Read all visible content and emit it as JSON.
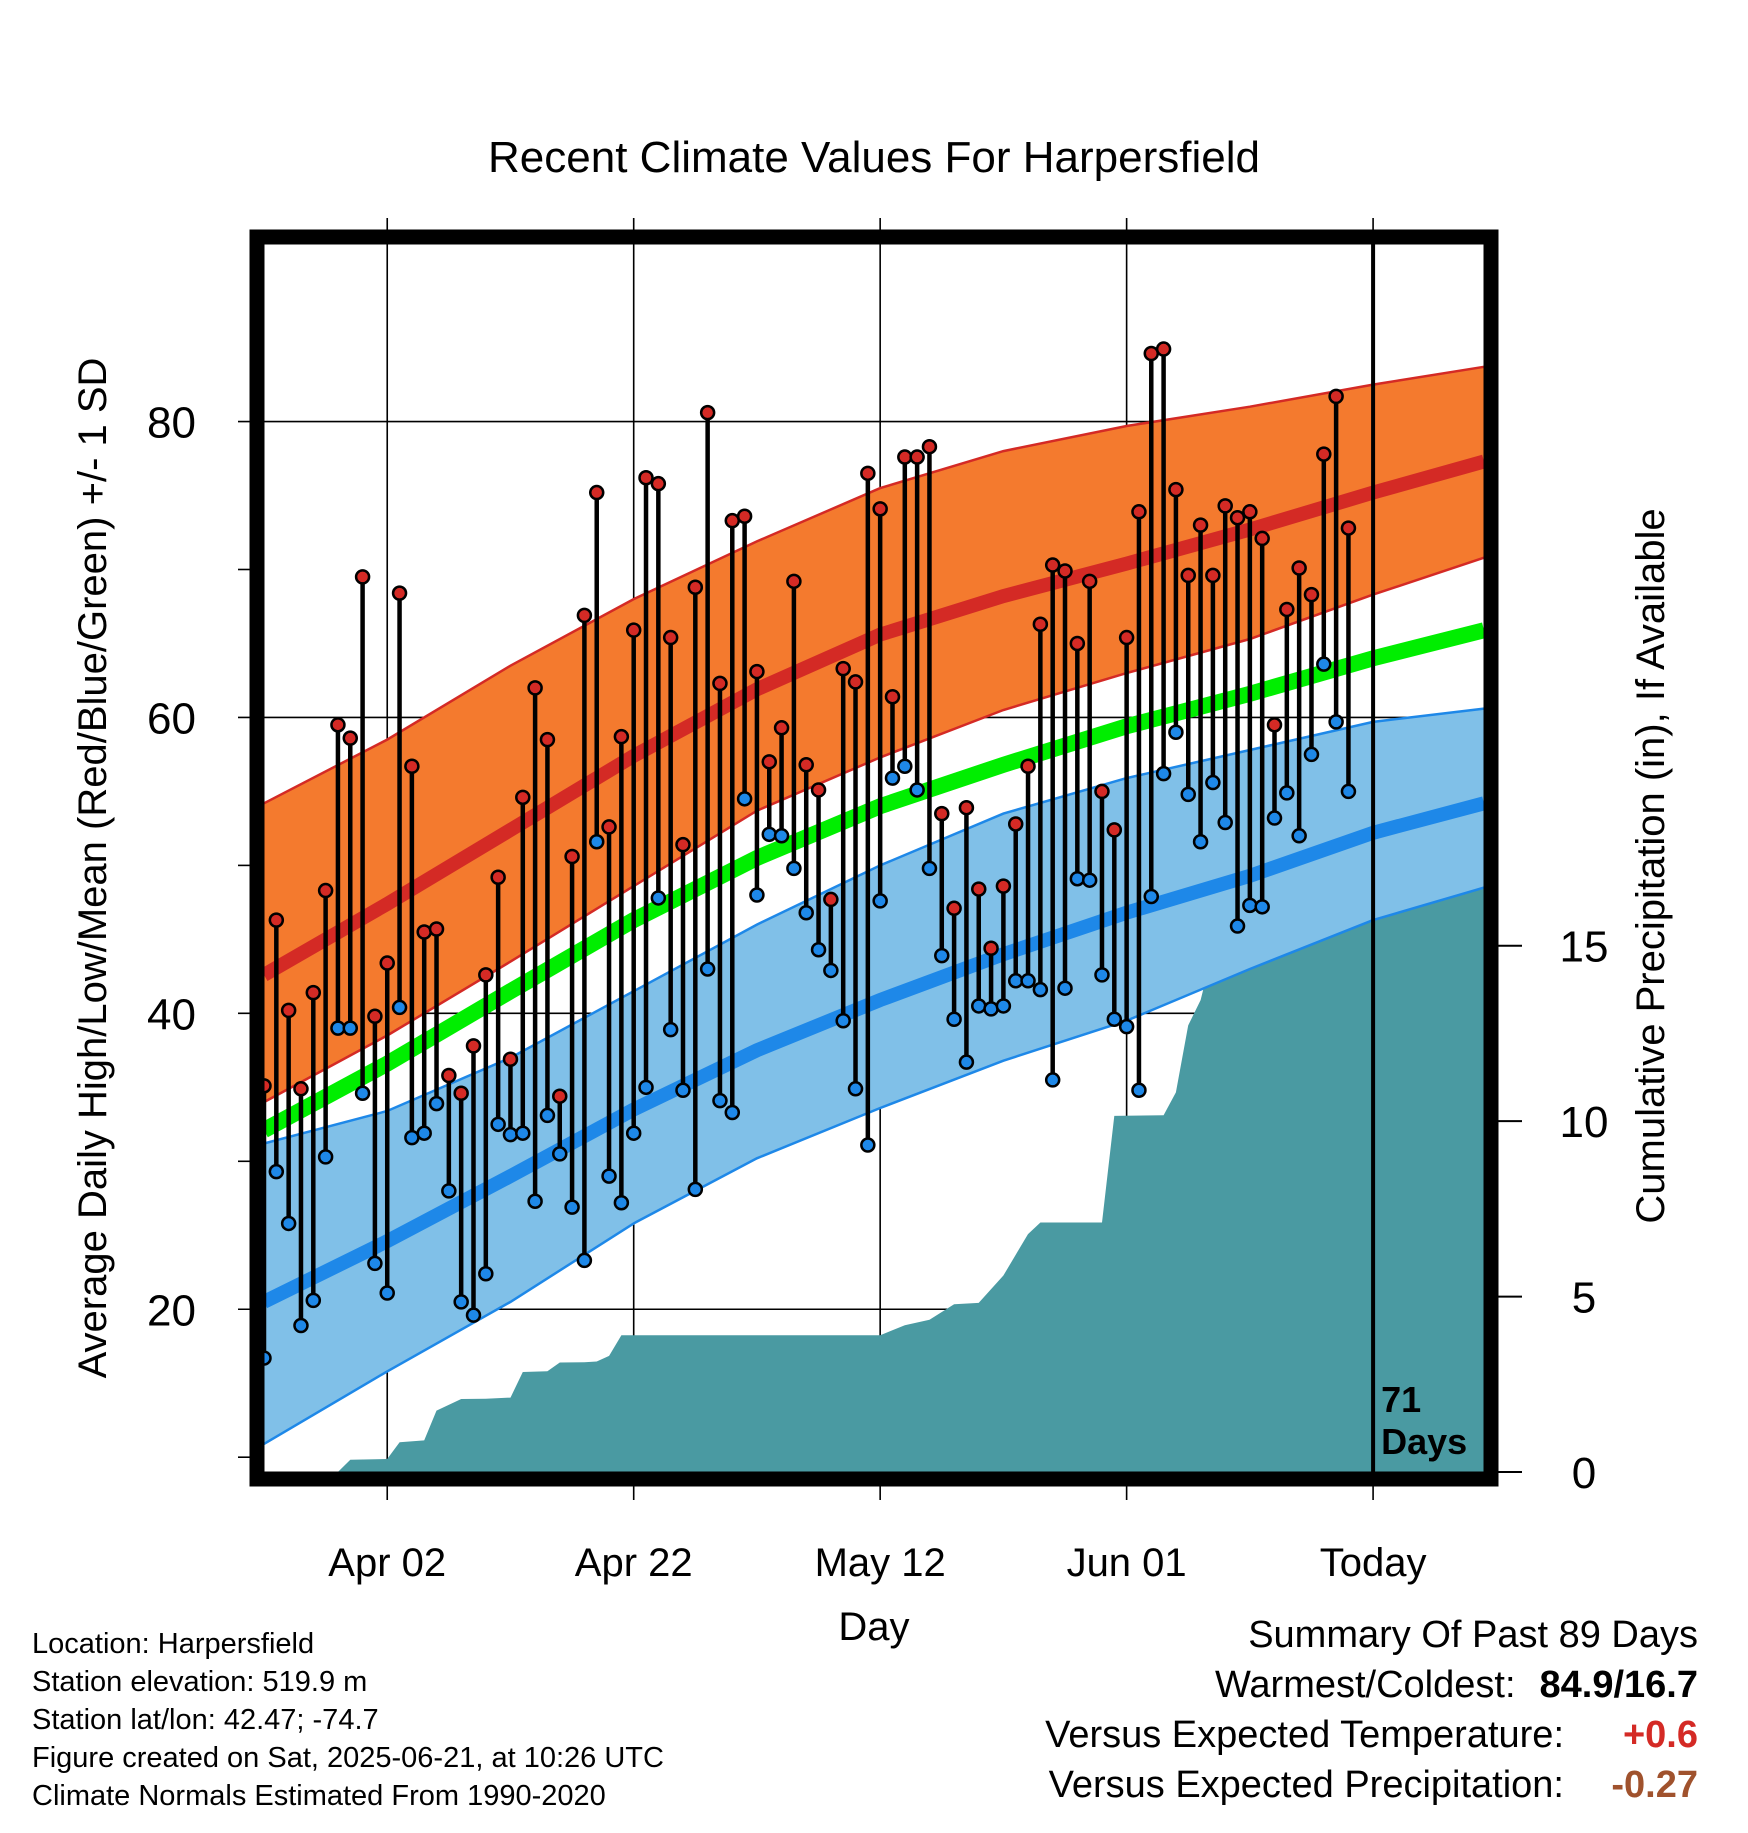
{
  "chart_data": {
    "type": "line",
    "title": "Recent Climate Values For Harpersfield",
    "xlabel": "Day",
    "ylabel_left": "Average Daily High/Low/Mean (Red/Blue/Green) +/- 1 SD",
    "ylabel_right": "Cumulative Precipitation (in), If Available",
    "x_range": [
      "2025-03-23",
      "2025-06-30"
    ],
    "x_ticks": [
      {
        "date": "2025-04-02",
        "label": "Apr 02"
      },
      {
        "date": "2025-04-22",
        "label": "Apr 22"
      },
      {
        "date": "2025-05-12",
        "label": "May 12"
      },
      {
        "date": "2025-06-01",
        "label": "Jun 01"
      },
      {
        "date": "2025-06-21",
        "label": "Today"
      }
    ],
    "y_left_range": [
      9,
      92
    ],
    "y_left_ticks": [
      20,
      40,
      60,
      80
    ],
    "y_right_range": [
      0,
      35
    ],
    "y_right_ticks": [
      0,
      5,
      10,
      15
    ],
    "grid": true,
    "today_date": "2025-06-21",
    "today_annotation": [
      "71",
      "Days"
    ],
    "colors": {
      "high_band": "#f47a2e",
      "high_mean": "#d42a25",
      "low_band": "#80c0e8",
      "low_mean": "#1e88e8",
      "mean": "#00ee00",
      "precip": "#4a9aa2",
      "high_dot": "#d42a25",
      "low_dot": "#1e88e8"
    },
    "normals": {
      "dates": [
        "2025-03-23",
        "2025-04-02",
        "2025-04-12",
        "2025-04-22",
        "2025-05-02",
        "2025-05-12",
        "2025-05-22",
        "2025-06-01",
        "2025-06-11",
        "2025-06-21",
        "2025-06-30"
      ],
      "high_upper": [
        54.2,
        58.5,
        63.5,
        68.0,
        71.9,
        75.5,
        78.0,
        79.7,
        81.0,
        82.5,
        83.7
      ],
      "high_mean": [
        42.6,
        47.4,
        52.4,
        57.4,
        61.9,
        65.6,
        68.2,
        70.4,
        72.7,
        75.2,
        77.3
      ],
      "high_lower": [
        34.0,
        38.5,
        43.5,
        48.6,
        53.7,
        57.3,
        60.5,
        63.0,
        65.3,
        68.3,
        70.8
      ],
      "mean": [
        32.1,
        36.6,
        41.5,
        46.3,
        50.5,
        54.0,
        56.8,
        59.4,
        61.6,
        64.0,
        65.9
      ],
      "low_upper": [
        31.2,
        33.4,
        37.0,
        41.5,
        46.0,
        50.0,
        53.5,
        55.9,
        57.8,
        59.7,
        60.6
      ],
      "low_mean": [
        20.5,
        24.6,
        29.0,
        33.5,
        37.5,
        40.9,
        44.0,
        46.8,
        49.3,
        52.2,
        54.2
      ],
      "low_lower": [
        10.9,
        15.8,
        20.5,
        25.8,
        30.2,
        33.6,
        36.8,
        39.5,
        43.0,
        46.3,
        48.5
      ]
    },
    "daily_highs": [
      35.1,
      46.3,
      40.2,
      34.9,
      41.4,
      48.3,
      59.5,
      58.6,
      69.5,
      39.8,
      43.4,
      68.4,
      56.7,
      45.5,
      45.7,
      35.8,
      34.6,
      37.8,
      42.6,
      49.2,
      36.9,
      54.6,
      62.0,
      58.5,
      34.4,
      50.6,
      66.9,
      75.2,
      52.6,
      58.7,
      65.9,
      76.2,
      75.8,
      65.4,
      51.4,
      68.8,
      80.6,
      62.3,
      73.3,
      73.6,
      63.1,
      57.0,
      59.3,
      69.2,
      56.8,
      55.1,
      47.7,
      63.3,
      62.4,
      76.5,
      74.1,
      61.4,
      77.6,
      77.6,
      78.3,
      53.5,
      47.1,
      53.9,
      48.4,
      44.4,
      48.6,
      52.8,
      56.7,
      66.3,
      70.3,
      69.9,
      65.0,
      69.2,
      55.0,
      52.4,
      65.4,
      73.9,
      84.6,
      84.9,
      75.4,
      69.6,
      73.0,
      69.6,
      74.3,
      73.5,
      73.9,
      72.1,
      59.5,
      67.3,
      70.1,
      68.3,
      77.8,
      81.7,
      72.8
    ],
    "daily_lows": [
      16.7,
      29.3,
      25.8,
      18.9,
      20.6,
      30.3,
      39.0,
      39.0,
      34.6,
      23.1,
      21.1,
      40.4,
      31.6,
      31.9,
      33.9,
      28.0,
      20.5,
      19.6,
      22.4,
      32.5,
      31.8,
      31.9,
      27.3,
      33.1,
      30.5,
      26.9,
      23.3,
      51.6,
      29.0,
      27.2,
      31.9,
      35.0,
      47.8,
      38.9,
      34.8,
      28.1,
      43.0,
      34.1,
      33.3,
      54.5,
      48.0,
      52.1,
      52.0,
      49.8,
      46.8,
      44.3,
      42.9,
      39.5,
      34.9,
      31.1,
      47.6,
      55.9,
      56.7,
      55.1,
      49.8,
      43.9,
      39.6,
      36.7,
      40.5,
      40.3,
      40.5,
      42.2,
      42.2,
      41.6,
      35.5,
      41.7,
      49.1,
      49.0,
      42.6,
      39.6,
      39.1,
      34.8,
      47.9,
      56.2,
      59.0,
      54.8,
      51.6,
      55.6,
      52.9,
      45.9,
      47.3,
      47.2,
      53.2,
      54.9,
      52.0,
      57.5,
      63.6,
      59.7,
      55.0
    ],
    "precip": {
      "dates": [
        "2025-03-23",
        "2025-03-29",
        "2025-03-30",
        "2025-04-02",
        "2025-04-03",
        "2025-04-05",
        "2025-04-06",
        "2025-04-08",
        "2025-04-10",
        "2025-04-12",
        "2025-04-13",
        "2025-04-15",
        "2025-04-16",
        "2025-04-18",
        "2025-04-19",
        "2025-04-20",
        "2025-04-21",
        "2025-05-12",
        "2025-05-14",
        "2025-05-16",
        "2025-05-18",
        "2025-05-20",
        "2025-05-22",
        "2025-05-24",
        "2025-05-25",
        "2025-05-26",
        "2025-05-30",
        "2025-05-31",
        "2025-06-04",
        "2025-06-05",
        "2025-06-06",
        "2025-06-07",
        "2025-06-08",
        "2025-06-09",
        "2025-06-11",
        "2025-06-14",
        "2025-06-17",
        "2025-06-19",
        "2025-06-20",
        "2025-06-30"
      ],
      "values": [
        0.0,
        0.0,
        0.35,
        0.37,
        0.85,
        0.9,
        1.75,
        2.08,
        2.09,
        2.12,
        2.85,
        2.87,
        3.12,
        3.13,
        3.15,
        3.31,
        3.9,
        3.9,
        4.18,
        4.34,
        4.78,
        4.82,
        5.6,
        6.78,
        7.11,
        7.11,
        7.11,
        10.15,
        10.17,
        10.82,
        12.73,
        13.45,
        14.85,
        15.41,
        15.9,
        16.0,
        16.24,
        16.76,
        16.91,
        16.91
      ]
    }
  },
  "info": {
    "location": "Location: Harpersfield",
    "elevation": "Station elevation: 519.9 m",
    "latlon": "Station lat/lon: 42.47; -74.7",
    "created": "Figure created on Sat, 2025-06-21, at 10:26 UTC",
    "normals": "Climate Normals Estimated From 1990-2020"
  },
  "summary": {
    "title": "Summary Of Past 89 Days",
    "warm_cold_label": "Warmest/Coldest:",
    "warm_cold_value": "84.9/16.7",
    "temp_label": "Versus Expected Temperature:",
    "temp_value": "+0.6",
    "temp_color": "#d42a25",
    "precip_label": "Versus Expected Precipitation:",
    "precip_value": "-0.27",
    "precip_color": "#a0522d"
  }
}
